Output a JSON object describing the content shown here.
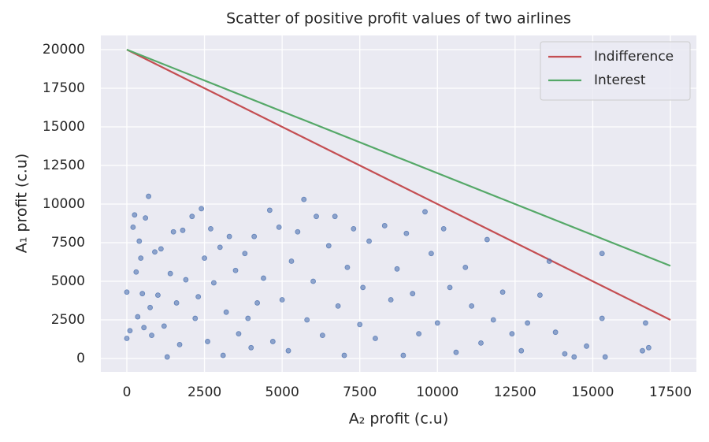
{
  "chart_data": {
    "type": "scatter",
    "title": "Scatter of positive profit values of two airlines",
    "x_label": "A₂ profit (c.u)",
    "y_label": "A₁ profit (c.u)",
    "xlim": [
      -837,
      18337
    ],
    "ylim": [
      -867,
      20918
    ],
    "xticks": [
      0,
      2500,
      5000,
      7500,
      10000,
      12500,
      15000,
      17500
    ],
    "yticks": [
      0,
      2500,
      5000,
      7500,
      10000,
      12500,
      15000,
      17500,
      20000
    ],
    "grid": true,
    "legend": "upper right",
    "series": [
      {
        "name": "Indifference",
        "type": "line",
        "color": "#c44e52",
        "x": [
          0,
          17500
        ],
        "values": [
          20000,
          2500
        ]
      },
      {
        "name": "Interest",
        "type": "line",
        "color": "#55a868",
        "x": [
          0,
          17500
        ],
        "values": [
          20000,
          6000
        ]
      },
      {
        "type": "scatter",
        "color": "#4c72b0",
        "x": [
          0,
          0,
          100,
          200,
          250,
          300,
          350,
          400,
          450,
          500,
          550,
          600,
          700,
          750,
          800,
          900,
          1000,
          1100,
          1200,
          1300,
          1400,
          1500,
          1600,
          1700,
          1800,
          1900,
          2100,
          2200,
          2300,
          2400,
          2500,
          2600,
          2700,
          2800,
          3000,
          3100,
          3200,
          3300,
          3500,
          3600,
          3800,
          3900,
          4000,
          4100,
          4200,
          4400,
          4600,
          4700,
          4900,
          5000,
          5200,
          5300,
          5500,
          5700,
          5800,
          6000,
          6100,
          6300,
          6500,
          6700,
          6800,
          7000,
          7100,
          7300,
          7500,
          7600,
          7800,
          8000,
          8300,
          8500,
          8700,
          8900,
          9000,
          9200,
          9400,
          9600,
          9800,
          10000,
          10200,
          10400,
          10600,
          10900,
          11100,
          11400,
          11600,
          11800,
          12100,
          12400,
          12700,
          12900,
          13300,
          13600,
          13800,
          14100,
          14400,
          14800,
          15300,
          15300,
          15400,
          16600,
          16700,
          16800
        ],
        "values": [
          4300,
          1300,
          1800,
          8500,
          9300,
          5600,
          2700,
          7600,
          6500,
          4200,
          2000,
          9100,
          10500,
          3300,
          1500,
          6900,
          4100,
          7100,
          2100,
          100,
          5500,
          8200,
          3600,
          900,
          8300,
          5100,
          9200,
          2600,
          4000,
          9700,
          6500,
          1100,
          8400,
          4900,
          7200,
          200,
          3000,
          7900,
          5700,
          1600,
          6800,
          2600,
          700,
          7900,
          3600,
          5200,
          9600,
          1100,
          8500,
          3800,
          500,
          6300,
          8200,
          10300,
          2500,
          5000,
          9200,
          1500,
          7300,
          9200,
          3400,
          200,
          5900,
          8400,
          2200,
          4600,
          7600,
          1300,
          8600,
          3800,
          5800,
          200,
          8100,
          4200,
          1600,
          9500,
          6800,
          2300,
          8400,
          4600,
          400,
          5900,
          3400,
          1000,
          7700,
          2500,
          4300,
          1600,
          500,
          2300,
          4100,
          6300,
          1700,
          300,
          100,
          800,
          6800,
          2600,
          100,
          500,
          2300,
          700
        ]
      }
    ]
  }
}
